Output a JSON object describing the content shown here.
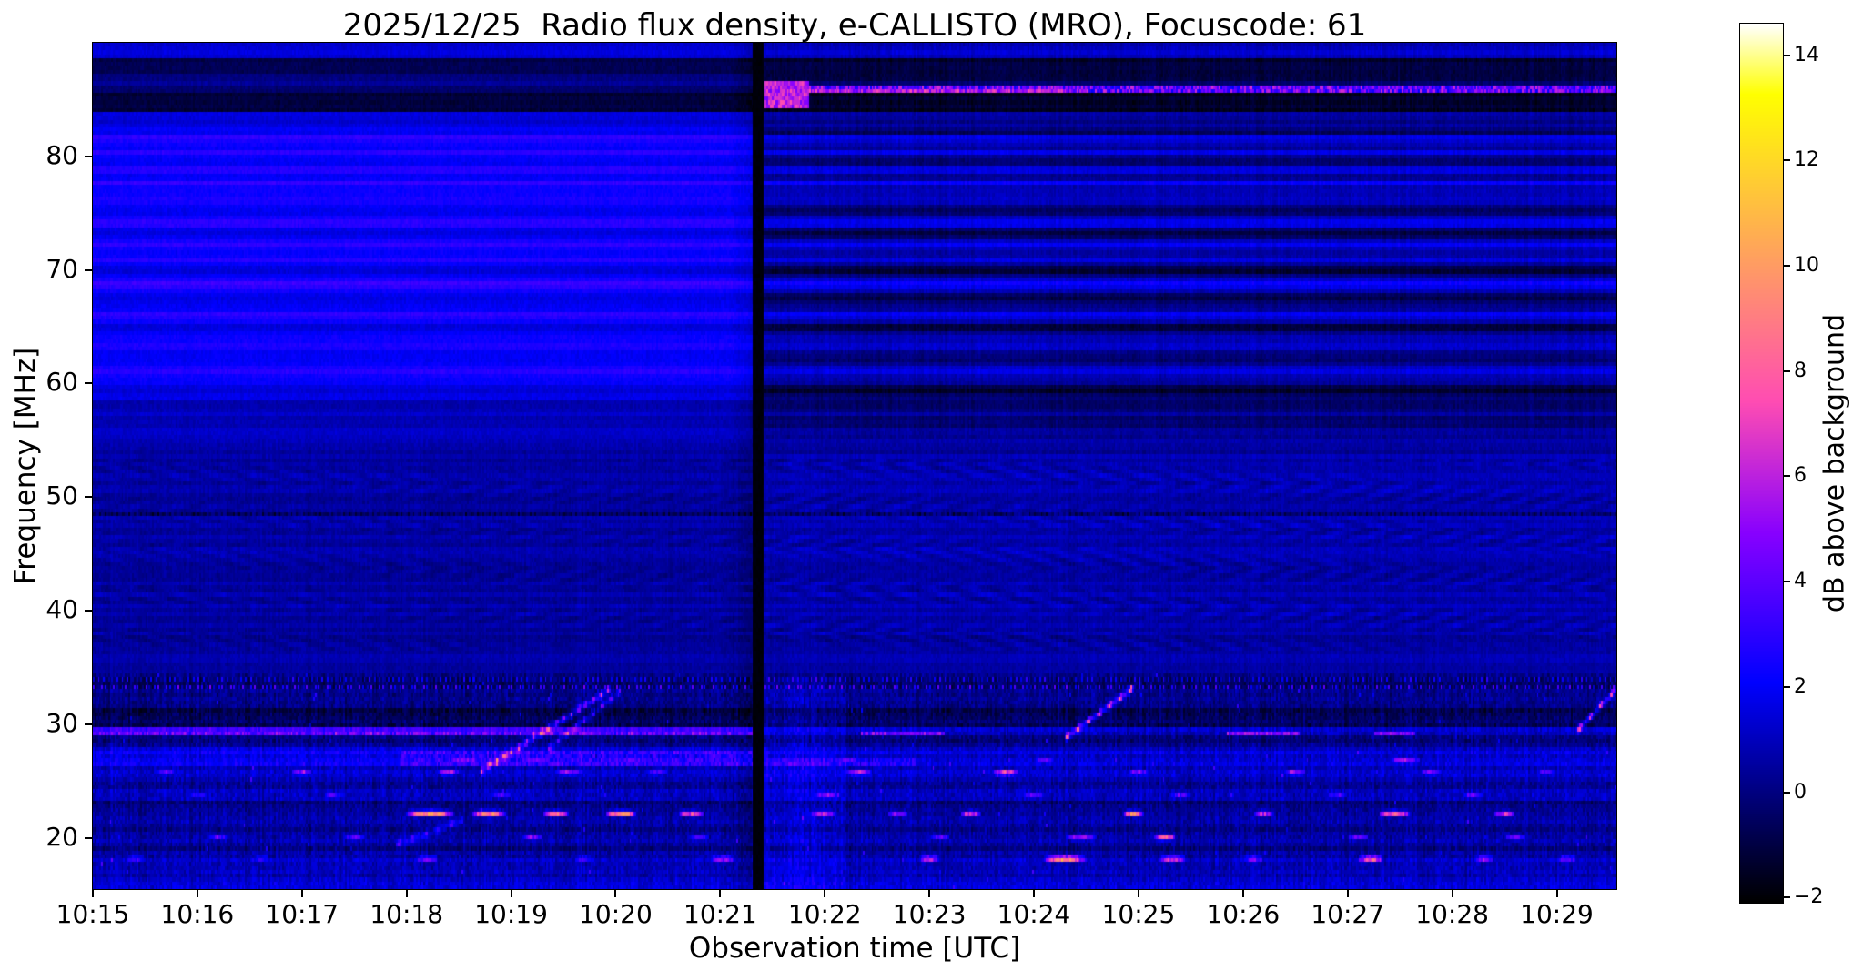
{
  "chart_data": {
    "type": "heatmap",
    "title": "2025/12/25  Radio flux density, e-CALLISTO (MRO), Focuscode: 61",
    "xlabel": "Observation time [UTC]",
    "ylabel": "Frequency [MHz]",
    "colorbar_label": "dB above background",
    "x_ticks": [
      "10:15",
      "10:16",
      "10:17",
      "10:18",
      "10:19",
      "10:20",
      "10:21",
      "10:22",
      "10:23",
      "10:24",
      "10:25",
      "10:26",
      "10:27",
      "10:28",
      "10:29"
    ],
    "x_start_utc": "10:15",
    "total_minutes": 14.57,
    "y_ticks": [
      20,
      30,
      40,
      50,
      60,
      70,
      80
    ],
    "freq_range_mhz": [
      15.5,
      90.0
    ],
    "value_range_db": [
      -2.1,
      14.6
    ],
    "colorbar_ticks": [
      -2,
      0,
      2,
      4,
      6,
      8,
      10,
      12,
      14
    ],
    "colormap": "gnuplot2",
    "data_gap": {
      "t_min": 6.36,
      "half_width_min": 0.045
    },
    "bands": [
      {
        "f0": 15.5,
        "f1": 16.9,
        "L": 1.1,
        "R": 1.1
      },
      {
        "f0": 16.9,
        "f1": 17.7,
        "L": 0.7,
        "R": 0.7
      },
      {
        "f0": 17.7,
        "f1": 18.7,
        "L": 0.9,
        "R": 0.9
      },
      {
        "f0": 18.7,
        "f1": 19.6,
        "L": 0.4,
        "R": 0.4
      },
      {
        "f0": 19.6,
        "f1": 20.6,
        "L": 0.9,
        "R": 0.9
      },
      {
        "f0": 20.6,
        "f1": 21.7,
        "L": 0.5,
        "R": 0.5
      },
      {
        "f0": 21.7,
        "f1": 22.7,
        "L": 0.8,
        "R": 0.8
      },
      {
        "f0": 22.7,
        "f1": 23.3,
        "L": 0.0,
        "R": 0.0
      },
      {
        "f0": 23.3,
        "f1": 24.3,
        "L": 0.9,
        "R": 0.9
      },
      {
        "f0": 24.3,
        "f1": 25.3,
        "L": 0.6,
        "R": 0.6
      },
      {
        "f0": 25.3,
        "f1": 26.3,
        "L": 1.2,
        "R": 1.2
      },
      {
        "f0": 26.3,
        "f1": 27.9,
        "L": 1.9,
        "R": 1.4
      },
      {
        "f0": 27.9,
        "f1": 28.9,
        "L": 0.2,
        "R": 0.1
      },
      {
        "f0": 28.9,
        "f1": 29.6,
        "L": 3.2,
        "R": 1.2
      },
      {
        "f0": 29.6,
        "f1": 31.4,
        "L": -0.6,
        "R": -0.5
      },
      {
        "f0": 31.4,
        "f1": 32.9,
        "L": 0.1,
        "R": 0.2
      },
      {
        "f0": 32.9,
        "f1": 34.4,
        "L": -0.2,
        "R": -0.2
      },
      {
        "f0": 34.4,
        "f1": 36.0,
        "L": 0.5,
        "R": 0.6
      },
      {
        "f0": 36.0,
        "f1": 38.0,
        "L": 0.45,
        "R": 0.55
      },
      {
        "f0": 38.0,
        "f1": 53.6,
        "L": 0.55,
        "R": 0.75
      },
      {
        "f0": 53.6,
        "f1": 55.0,
        "L": 0.7,
        "R": 0.5
      },
      {
        "f0": 55.0,
        "f1": 58.6,
        "L": 1.0,
        "R": 0.1
      },
      {
        "f0": 58.6,
        "f1": 82.6,
        "L": 2.0,
        "R": 0.35
      },
      {
        "f0": 82.6,
        "f1": 83.9,
        "L": 1.4,
        "R": 0.3
      },
      {
        "f0": 83.9,
        "f1": 85.6,
        "L": -1.1,
        "R": -1.4
      },
      {
        "f0": 85.6,
        "f1": 86.4,
        "L": -0.4,
        "R": -0.6
      },
      {
        "f0": 86.4,
        "f1": 87.3,
        "L": 0.2,
        "R": -0.6
      },
      {
        "f0": 87.3,
        "f1": 88.6,
        "L": -0.9,
        "R": -1.3
      },
      {
        "f0": 88.6,
        "f1": 90.0,
        "L": 1.3,
        "R": 0.9
      }
    ],
    "upper_band": {
      "range": [
        58.6,
        82.6
      ],
      "bright_rows": [
        61.0,
        63.4,
        66.0,
        68.7,
        70.9,
        72.3,
        74.1,
        76.2,
        77.6,
        78.9,
        80.3,
        81.7
      ],
      "bright_amp_left": 0.85,
      "bright_amp_right": 1.25,
      "strong_row": 68.7,
      "strong_amp": 1.7,
      "dark_rows": [
        59.4,
        62.1,
        64.9,
        67.6,
        69.9,
        73.1,
        75.3,
        79.6,
        82.1
      ],
      "dark_amp_left": -0.35,
      "dark_amp_right": -1.25
    },
    "herringbone": {
      "range": [
        36.5,
        53.5
      ],
      "amp_left": 0.32,
      "amp_right": 0.5,
      "cell_mhz": 1.8,
      "cycles_per_min": 2.6
    },
    "dotted_lines": [
      {
        "f": 33.25,
        "amp": 4.5,
        "per_min": 26
      },
      {
        "f": 33.95,
        "amp": 2.8,
        "per_min": 22
      },
      {
        "f": 48.6,
        "amp": -2.6,
        "per_min": 18
      }
    ],
    "sweeps": [
      {
        "t0": 3.7,
        "t1": 4.95,
        "f0": 25.8,
        "f1": 33.1,
        "peak": 6.5,
        "width": 0.22,
        "dash_per_min": 14
      },
      {
        "t0": 4.35,
        "t1": 5.05,
        "f0": 27.8,
        "f1": 32.9,
        "peak": 4.5,
        "width": 0.2,
        "dash_per_min": 12
      },
      {
        "t0": 9.3,
        "t1": 9.95,
        "f0": 28.8,
        "f1": 33.2,
        "peak": 9.0,
        "width": 0.2,
        "dash_per_min": 10
      },
      {
        "t0": 14.2,
        "t1": 14.57,
        "f0": 29.5,
        "f1": 33.1,
        "peak": 8.0,
        "width": 0.2,
        "dash_per_min": 10
      },
      {
        "t0": 2.9,
        "t1": 3.55,
        "f0": 19.4,
        "f1": 21.6,
        "peak": 3.5,
        "width": 0.25,
        "dash_per_min": 8
      }
    ],
    "patches": [
      {
        "t0": 6.45,
        "t1": 14.57,
        "f0": 85.7,
        "f1": 86.15,
        "v": 4.2,
        "flicker": 2.2,
        "mode": "max"
      },
      {
        "t0": 6.42,
        "t1": 6.85,
        "f0": 84.3,
        "f1": 86.6,
        "v": 6.0,
        "flicker": 1.5,
        "mode": "max"
      },
      {
        "t0": 6.85,
        "t1": 9.3,
        "f0": 85.75,
        "f1": 86.1,
        "v": 5.5,
        "flicker": 2.0,
        "mode": "max"
      },
      {
        "t0": 0.0,
        "t1": 6.32,
        "f0": 28.95,
        "f1": 29.35,
        "v": 1.2,
        "flicker": 1.4,
        "mode": "add"
      },
      {
        "t0": 7.35,
        "t1": 8.15,
        "f0": 28.9,
        "f1": 29.35,
        "v": 4.5,
        "flicker": 1.5,
        "mode": "max"
      },
      {
        "t0": 10.85,
        "t1": 11.55,
        "f0": 28.9,
        "f1": 29.3,
        "v": 5.0,
        "flicker": 1.5,
        "mode": "max"
      },
      {
        "t0": 12.25,
        "t1": 12.65,
        "f0": 29.0,
        "f1": 29.3,
        "v": 4.5,
        "flicker": 1.0,
        "mode": "max"
      },
      {
        "t0": 2.95,
        "t1": 6.32,
        "f0": 26.4,
        "f1": 27.6,
        "v": 1.1,
        "flicker": 1.0,
        "mode": "add"
      },
      {
        "t0": 6.45,
        "t1": 7.9,
        "f0": 26.3,
        "f1": 27.0,
        "v": 1.0,
        "flicker": 0.8,
        "mode": "add"
      },
      {
        "t0": 6.42,
        "t1": 7.2,
        "f0": 15.5,
        "f1": 34.0,
        "v": 0.7,
        "flicker": 0.3,
        "mode": "add"
      }
    ],
    "burst_rows": [
      {
        "f0": 21.8,
        "f1": 22.45,
        "events": [
          [
            3.0,
            3.45,
            10
          ],
          [
            3.62,
            3.95,
            9
          ],
          [
            4.3,
            4.55,
            8
          ],
          [
            4.9,
            5.2,
            9.5
          ],
          [
            5.6,
            5.85,
            7
          ],
          [
            6.85,
            7.1,
            6
          ],
          [
            7.6,
            7.8,
            5
          ],
          [
            8.3,
            8.5,
            6
          ],
          [
            9.85,
            10.05,
            9
          ],
          [
            11.1,
            11.3,
            6
          ],
          [
            12.3,
            12.6,
            8
          ],
          [
            13.4,
            13.6,
            6
          ]
        ]
      },
      {
        "f0": 17.8,
        "f1": 18.5,
        "events": [
          [
            0.3,
            0.5,
            4
          ],
          [
            1.5,
            1.7,
            3.5
          ],
          [
            3.1,
            3.3,
            5
          ],
          [
            4.6,
            4.8,
            4
          ],
          [
            5.9,
            6.15,
            6
          ],
          [
            7.9,
            8.1,
            7
          ],
          [
            9.1,
            9.5,
            11
          ],
          [
            10.2,
            10.45,
            8
          ],
          [
            11.0,
            11.2,
            5
          ],
          [
            12.1,
            12.35,
            9
          ],
          [
            13.2,
            13.4,
            6
          ],
          [
            14.0,
            14.2,
            5
          ]
        ]
      },
      {
        "f0": 25.4,
        "f1": 26.1,
        "events": [
          [
            0.6,
            0.8,
            4
          ],
          [
            1.9,
            2.1,
            5
          ],
          [
            3.3,
            3.5,
            6
          ],
          [
            4.4,
            4.7,
            5
          ],
          [
            5.3,
            5.5,
            4
          ],
          [
            7.2,
            7.45,
            6
          ],
          [
            8.6,
            8.85,
            7
          ],
          [
            9.9,
            10.1,
            5
          ],
          [
            11.4,
            11.6,
            6
          ],
          [
            12.7,
            12.9,
            5
          ],
          [
            13.8,
            14.0,
            4
          ]
        ]
      },
      {
        "f0": 19.7,
        "f1": 20.4,
        "events": [
          [
            1.1,
            1.3,
            3.5
          ],
          [
            2.4,
            2.6,
            4
          ],
          [
            4.1,
            4.3,
            4.5
          ],
          [
            5.7,
            5.9,
            3.5
          ],
          [
            8.0,
            8.2,
            4
          ],
          [
            9.3,
            9.6,
            5
          ],
          [
            10.15,
            10.35,
            8
          ],
          [
            12.0,
            12.2,
            4.5
          ],
          [
            13.5,
            13.7,
            4
          ]
        ]
      },
      {
        "f0": 23.4,
        "f1": 24.1,
        "events": [
          [
            0.9,
            1.1,
            3
          ],
          [
            2.2,
            2.4,
            3.5
          ],
          [
            3.8,
            4.0,
            4
          ],
          [
            6.9,
            7.15,
            5
          ],
          [
            8.9,
            9.1,
            4
          ],
          [
            10.3,
            10.5,
            4
          ],
          [
            11.8,
            12.0,
            3.5
          ],
          [
            13.1,
            13.3,
            4
          ]
        ]
      },
      {
        "f0": 26.4,
        "f1": 27.2,
        "events": [
          [
            3.4,
            3.7,
            5
          ],
          [
            4.1,
            4.4,
            4.5
          ],
          [
            5.0,
            5.3,
            4
          ],
          [
            7.1,
            7.35,
            4.5
          ],
          [
            9.0,
            9.2,
            4
          ],
          [
            12.4,
            12.7,
            5
          ]
        ]
      }
    ]
  }
}
